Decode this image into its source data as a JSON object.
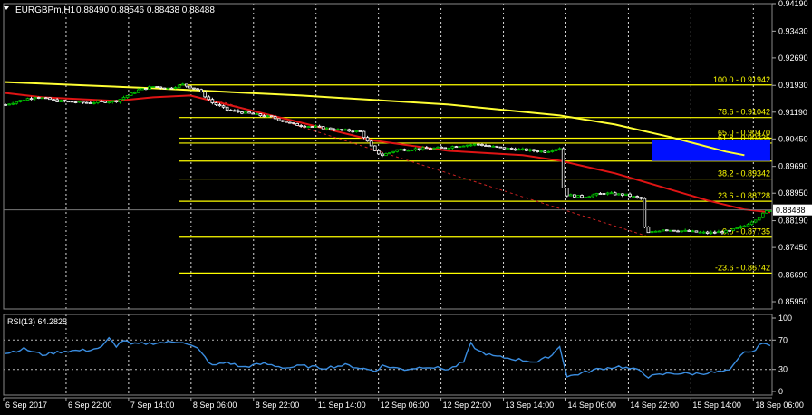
{
  "header": {
    "symbol_label": "EURGBPm,H1",
    "ohlc": "0.88490 0.88546 0.88438 0.88488"
  },
  "colors": {
    "background": "#000000",
    "fib": "#ffff00",
    "ma_slow": "#ffff33",
    "ma_fast": "#e01414",
    "candle_up": "#00c800",
    "candle_down": "#ffffff",
    "box": "#0010ff",
    "rsi_line": "#3a8de0",
    "text": "#ffffff",
    "trend": "#cc2222"
  },
  "chart_data": [
    {
      "type": "candlestick",
      "title": "",
      "ylim": [
        0.8575,
        0.9419
      ],
      "yticks": [
        0.9419,
        0.9343,
        0.9269,
        0.9193,
        0.9119,
        0.9045,
        0.8969,
        0.8895,
        0.8819,
        0.8745,
        0.8669,
        0.8595
      ],
      "ytick_labels": [
        "0.94190",
        "0.93430",
        "0.92690",
        "0.91930",
        "0.91190",
        "0.90450",
        "0.89690",
        "0.88950",
        "0.88190",
        "0.87450",
        "0.86690",
        "0.85950"
      ],
      "current_price": 0.88488,
      "current_price_label": "0.88488",
      "xtick_labels": [
        "6 Sep 2017",
        "6 Sep 22:00",
        "7 Sep 14:00",
        "8 Sep 06:00",
        "8 Sep 22:00",
        "11 Sep 14:00",
        "12 Sep 06:00",
        "12 Sep 22:00",
        "13 Sep 14:00",
        "14 Sep 06:00",
        "14 Sep 22:00",
        "15 Sep 14:00",
        "18 Sep 06:00"
      ],
      "close_path": [
        [
          0,
          0.914
        ],
        [
          8,
          0.9162
        ],
        [
          14,
          0.915
        ],
        [
          22,
          0.9145
        ],
        [
          30,
          0.915
        ],
        [
          36,
          0.918
        ],
        [
          40,
          0.919
        ],
        [
          44,
          0.9185
        ],
        [
          48,
          0.9195
        ],
        [
          52,
          0.9182
        ],
        [
          56,
          0.9145
        ],
        [
          60,
          0.9125
        ],
        [
          66,
          0.9115
        ],
        [
          72,
          0.9105
        ],
        [
          78,
          0.9085
        ],
        [
          84,
          0.9078
        ],
        [
          90,
          0.907
        ],
        [
          96,
          0.9065
        ],
        [
          100,
          0.901
        ],
        [
          102,
          0.9
        ],
        [
          106,
          0.9015
        ],
        [
          112,
          0.9018
        ],
        [
          118,
          0.902
        ],
        [
          124,
          0.9028
        ],
        [
          128,
          0.903
        ],
        [
          134,
          0.902
        ],
        [
          140,
          0.9015
        ],
        [
          146,
          0.901
        ],
        [
          150,
          0.902
        ],
        [
          151,
          0.891
        ],
        [
          152,
          0.889
        ],
        [
          156,
          0.8885
        ],
        [
          162,
          0.8895
        ],
        [
          168,
          0.889
        ],
        [
          172,
          0.888
        ],
        [
          173,
          0.88
        ],
        [
          174,
          0.8785
        ],
        [
          178,
          0.8795
        ],
        [
          184,
          0.879
        ],
        [
          190,
          0.8785
        ],
        [
          196,
          0.879
        ],
        [
          200,
          0.8805
        ],
        [
          204,
          0.883
        ],
        [
          206,
          0.8845
        ],
        [
          207,
          0.8849
        ]
      ],
      "n_bars": 208,
      "ma_fast": [
        [
          0,
          0.9172
        ],
        [
          10,
          0.916
        ],
        [
          30,
          0.915
        ],
        [
          40,
          0.916
        ],
        [
          50,
          0.9165
        ],
        [
          60,
          0.914
        ],
        [
          80,
          0.909
        ],
        [
          100,
          0.904
        ],
        [
          120,
          0.9012
        ],
        [
          140,
          0.9
        ],
        [
          150,
          0.8985
        ],
        [
          165,
          0.895
        ],
        [
          175,
          0.892
        ],
        [
          190,
          0.8875
        ],
        [
          200,
          0.885
        ],
        [
          207,
          0.8842
        ]
      ],
      "ma_slow": [
        [
          0,
          0.9202
        ],
        [
          40,
          0.9185
        ],
        [
          80,
          0.9165
        ],
        [
          120,
          0.914
        ],
        [
          150,
          0.911
        ],
        [
          165,
          0.9085
        ],
        [
          180,
          0.905
        ],
        [
          195,
          0.901
        ],
        [
          200,
          0.9
        ]
      ],
      "trendline": [
        [
          58,
          0.915
        ],
        [
          174,
          0.8775
        ]
      ],
      "fib_start_bar": 47,
      "fib_levels": [
        {
          "label": "100.0 - 0.91942",
          "price": 0.91942
        },
        {
          "label": "78.6 - 0.91042",
          "price": 0.91042
        },
        {
          "label": "65.0 - 0.90470",
          "price": 0.9047
        },
        {
          "label": "61.8 - 0.90335",
          "price": 0.90335
        },
        {
          "label": "50.0 - 0.89838",
          "price": 0.89838
        },
        {
          "label": "38.2 - 0.89342",
          "price": 0.89342
        },
        {
          "label": "23.6 - 0.88728",
          "price": 0.88728
        },
        {
          "label": "0.0 - 0.87735",
          "price": 0.87735
        },
        {
          "label": "-23.6 - 0.86742",
          "price": 0.86742
        }
      ],
      "zone_box": {
        "x_start_bar": 175,
        "x_end_bar": 207,
        "price_top": 0.9041,
        "price_bottom": 0.8984
      }
    },
    {
      "type": "line",
      "title": "RSI(13) 64.2825",
      "ylim": [
        0,
        100
      ],
      "yticks": [
        100,
        70,
        30,
        0
      ],
      "ytick_labels": [
        "100",
        "70",
        "30",
        "0"
      ],
      "levels": [
        70,
        30
      ],
      "rsi_path": [
        [
          0,
          52
        ],
        [
          5,
          58
        ],
        [
          10,
          50
        ],
        [
          16,
          55
        ],
        [
          22,
          56
        ],
        [
          26,
          60
        ],
        [
          28,
          72
        ],
        [
          30,
          62
        ],
        [
          32,
          70
        ],
        [
          34,
          64
        ],
        [
          40,
          66
        ],
        [
          48,
          68
        ],
        [
          52,
          58
        ],
        [
          56,
          35
        ],
        [
          60,
          40
        ],
        [
          64,
          33
        ],
        [
          70,
          38
        ],
        [
          76,
          32
        ],
        [
          80,
          35
        ],
        [
          86,
          32
        ],
        [
          92,
          36
        ],
        [
          98,
          30
        ],
        [
          100,
          28
        ],
        [
          102,
          35
        ],
        [
          108,
          30
        ],
        [
          114,
          34
        ],
        [
          120,
          30
        ],
        [
          124,
          40
        ],
        [
          126,
          65
        ],
        [
          128,
          55
        ],
        [
          132,
          48
        ],
        [
          138,
          44
        ],
        [
          144,
          40
        ],
        [
          148,
          50
        ],
        [
          150,
          62
        ],
        [
          152,
          20
        ],
        [
          156,
          25
        ],
        [
          160,
          30
        ],
        [
          166,
          34
        ],
        [
          172,
          28
        ],
        [
          174,
          20
        ],
        [
          180,
          25
        ],
        [
          186,
          24
        ],
        [
          192,
          26
        ],
        [
          196,
          28
        ],
        [
          200,
          55
        ],
        [
          202,
          52
        ],
        [
          204,
          64
        ],
        [
          207,
          64
        ]
      ]
    }
  ]
}
